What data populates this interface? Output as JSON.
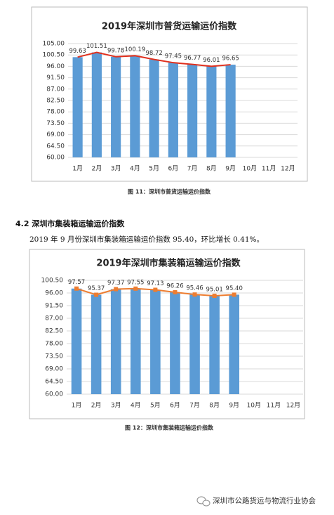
{
  "chart_data": [
    {
      "type": "bar",
      "title": "2019年深圳市普货运输运价指数",
      "categories": [
        "1月",
        "2月",
        "3月",
        "4月",
        "5月",
        "6月",
        "7月",
        "8月",
        "9月",
        "10月",
        "11月",
        "12月"
      ],
      "values": [
        99.63,
        101.51,
        99.78,
        100.19,
        98.72,
        97.45,
        96.77,
        96.01,
        96.65,
        null,
        null,
        null
      ],
      "color": "#5b9bd5",
      "line_color": "#e0301e",
      "markers": false,
      "ylim": [
        60,
        105
      ],
      "yticks": [
        {
          "value": 60,
          "label": "60.00"
        },
        {
          "value": 64.5,
          "label": "64.50"
        },
        {
          "value": 69,
          "label": "69.00"
        },
        {
          "value": 73.5,
          "label": "73.50"
        },
        {
          "value": 78,
          "label": "78.00"
        },
        {
          "value": 82.5,
          "label": "82.50"
        },
        {
          "value": 87,
          "label": "87.00"
        },
        {
          "value": 91.5,
          "label": "91.50"
        },
        {
          "value": 96,
          "label": "96.00"
        },
        {
          "value": 100.5,
          "label": "100.50"
        },
        {
          "value": 105,
          "label": "105.00"
        }
      ],
      "grid": true
    },
    {
      "type": "bar",
      "title": "2019年深圳市集装箱运输运价指数",
      "categories": [
        "1月",
        "2月",
        "3月",
        "4月",
        "5月",
        "6月",
        "7月",
        "8月",
        "9月",
        "10月",
        "11月",
        "12月"
      ],
      "values": [
        97.57,
        95.37,
        97.37,
        97.55,
        97.13,
        96.26,
        95.46,
        95.01,
        95.4,
        null,
        null,
        null
      ],
      "value_labels": [
        "97.57",
        "95.37",
        "97.37",
        "97.55",
        "97.13",
        "96.26",
        "95.46",
        "95.01",
        "95.40",
        null,
        null,
        null
      ],
      "color": "#5b9bd5",
      "line_color": "#ed7d31",
      "markers": true,
      "ylim": [
        60,
        100.5
      ],
      "yticks": [
        {
          "value": 60,
          "label": "60.00"
        },
        {
          "value": 64.5,
          "label": "64.50"
        },
        {
          "value": 69,
          "label": "69.00"
        },
        {
          "value": 73.5,
          "label": "73.50"
        },
        {
          "value": 78,
          "label": "78.00"
        },
        {
          "value": 82.5,
          "label": "82.50"
        },
        {
          "value": 87,
          "label": "87.00"
        },
        {
          "value": 91.5,
          "label": "91.50"
        },
        {
          "value": 96,
          "label": "96.00"
        },
        {
          "value": 100.5,
          "label": "100.50"
        }
      ],
      "grid": true
    }
  ],
  "document": {
    "caption_1": "图 11：深圳市普货运输运价指数",
    "heading": "4.2 深圳市集装箱运输运价指数",
    "paragraph": "2019 年 9 月份深圳市集装箱运输运价指数 95.40，环比增长 0.41%。",
    "caption_2": "图 12：深圳市集装箱运输运价指数",
    "watermark": "深圳市公路货运与物流行业协会"
  }
}
